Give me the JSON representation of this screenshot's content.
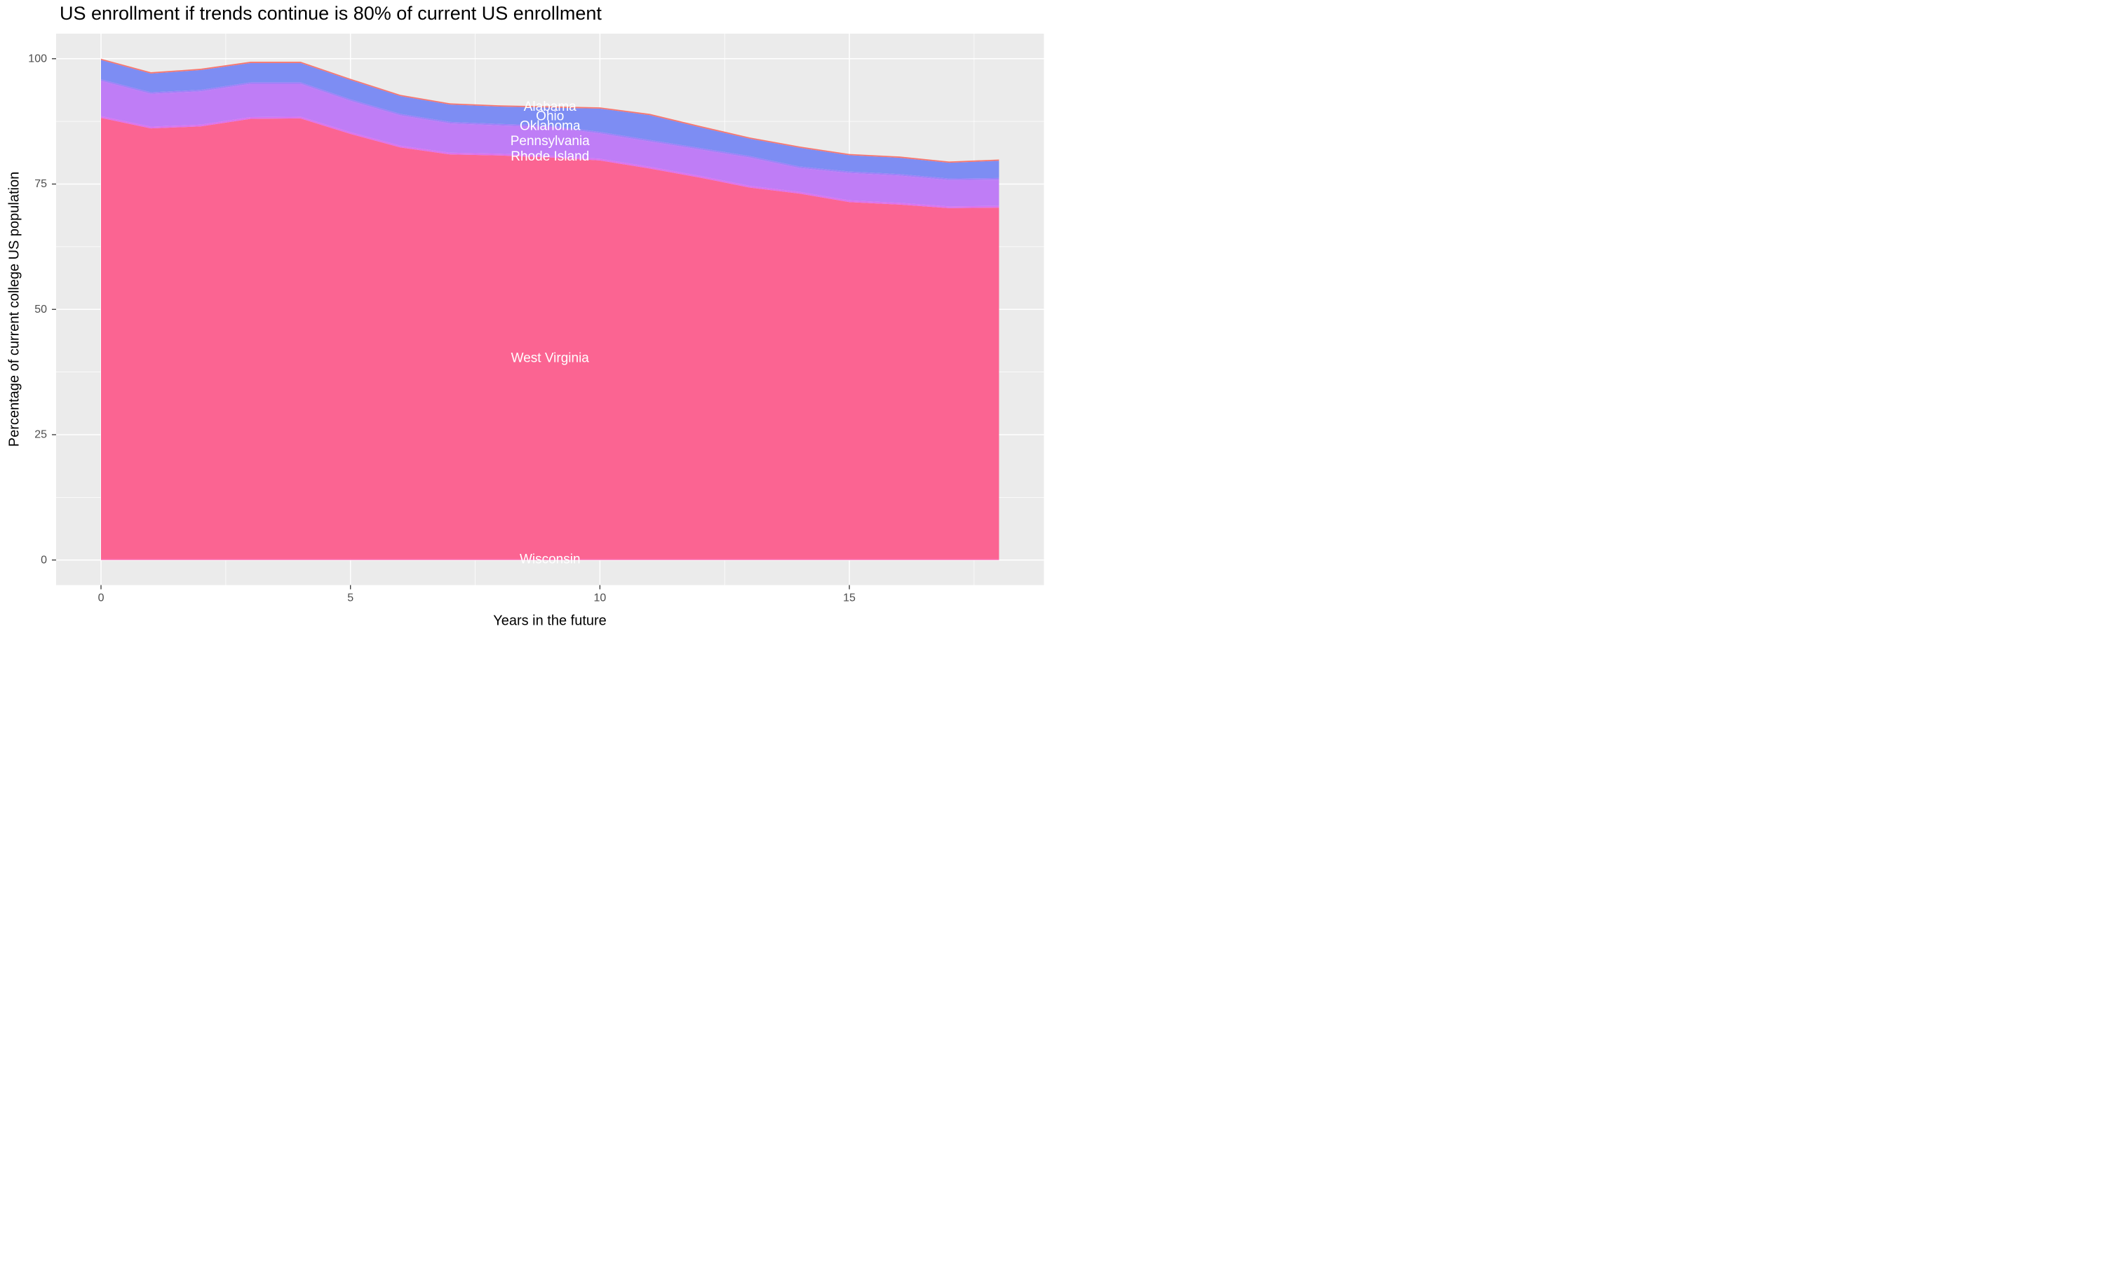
{
  "chart_data": {
    "type": "area",
    "stacked": true,
    "title": "US enrollment if trends continue is 80% of current US enrollment",
    "xlabel": "Years in the future",
    "ylabel": "Percentage of current college US population",
    "x": [
      0,
      1,
      2,
      3,
      4,
      5,
      6,
      7,
      8,
      9,
      10,
      11,
      12,
      13,
      14,
      15,
      16,
      17,
      18
    ],
    "xlim": [
      -0.9,
      18.9
    ],
    "ylim": [
      -5,
      105
    ],
    "x_ticks": [
      0,
      5,
      10,
      15
    ],
    "x_tick_labels": [
      "0",
      "5",
      "10",
      "15"
    ],
    "y_ticks": [
      0,
      25,
      50,
      75,
      100
    ],
    "y_tick_labels": [
      "0",
      "25",
      "50",
      "75",
      "100"
    ],
    "x_minor_ticks": [
      2.5,
      7.5,
      12.5,
      17.5
    ],
    "y_minor_ticks": [
      12.5,
      37.5,
      62.5,
      87.5
    ],
    "grid": "major-and-minor",
    "legend": "none",
    "label_x": 9,
    "panel_bg": "#EBEBEB",
    "grid_color": "#FFFFFF",
    "tick_color": "#333333",
    "axis_text_color": "#4D4D4D",
    "label_text_color": "#FFFFFF",
    "series": [
      {
        "name": "Wisconsin",
        "color": "#FF63B0",
        "values": [
          0.2,
          0.2,
          0.2,
          0.2,
          0.2,
          0.2,
          0.2,
          0.2,
          0.2,
          0.2,
          0.2,
          0.2,
          0.2,
          0.2,
          0.2,
          0.2,
          0.2,
          0.2,
          0.2
        ]
      },
      {
        "name": "West Virginia",
        "color": "#FB6492",
        "values": [
          88.0,
          85.9,
          86.3,
          87.8,
          87.9,
          84.8,
          82.1,
          80.7,
          80.5,
          80.1,
          79.5,
          77.9,
          76.1,
          74.1,
          72.9,
          71.2,
          70.7,
          70.0,
          70.1
        ]
      },
      {
        "name": "Rhode Island",
        "color": "#DC73EE",
        "values": [
          0.35,
          0.35,
          0.35,
          0.35,
          0.35,
          0.35,
          0.35,
          0.35,
          0.35,
          0.35,
          0.35,
          0.35,
          0.35,
          0.35,
          0.35,
          0.35,
          0.35,
          0.35,
          0.35
        ]
      },
      {
        "name": "Pennsylvania",
        "color": "#BF7DF6",
        "values": [
          7.05,
          6.55,
          6.65,
          6.65,
          6.55,
          6.25,
          6.05,
          5.85,
          5.65,
          5.75,
          5.05,
          5.05,
          5.25,
          5.65,
          4.75,
          5.45,
          5.45,
          5.25,
          5.25
        ]
      },
      {
        "name": "Oklahoma",
        "color": "#9F7FF9",
        "values": [
          0.3,
          0.3,
          0.3,
          0.3,
          0.3,
          0.3,
          0.3,
          0.3,
          0.3,
          0.3,
          0.3,
          0.3,
          0.3,
          0.3,
          0.3,
          0.3,
          0.3,
          0.3,
          0.3
        ]
      },
      {
        "name": "Ohio",
        "color": "#7D8DF3",
        "values": [
          3.85,
          3.75,
          3.95,
          3.85,
          3.85,
          3.85,
          3.55,
          3.45,
          3.45,
          3.55,
          4.65,
          4.95,
          4.15,
          3.45,
          3.75,
          3.25,
          3.25,
          3.15,
          3.45
        ]
      },
      {
        "name": "Alabama",
        "color": "#F8766D",
        "values": [
          0.25,
          0.25,
          0.25,
          0.25,
          0.25,
          0.25,
          0.25,
          0.25,
          0.25,
          0.25,
          0.25,
          0.25,
          0.25,
          0.25,
          0.25,
          0.25,
          0.25,
          0.25,
          0.25
        ]
      }
    ],
    "stack_totals_top": [
      100.0,
      97.3,
      98.0,
      99.4,
      99.4,
      96.0,
      92.8,
      91.1,
      90.7,
      90.5,
      90.3,
      89.0,
      86.6,
      84.3,
      82.5,
      81.0,
      80.5,
      79.5,
      79.9
    ]
  }
}
